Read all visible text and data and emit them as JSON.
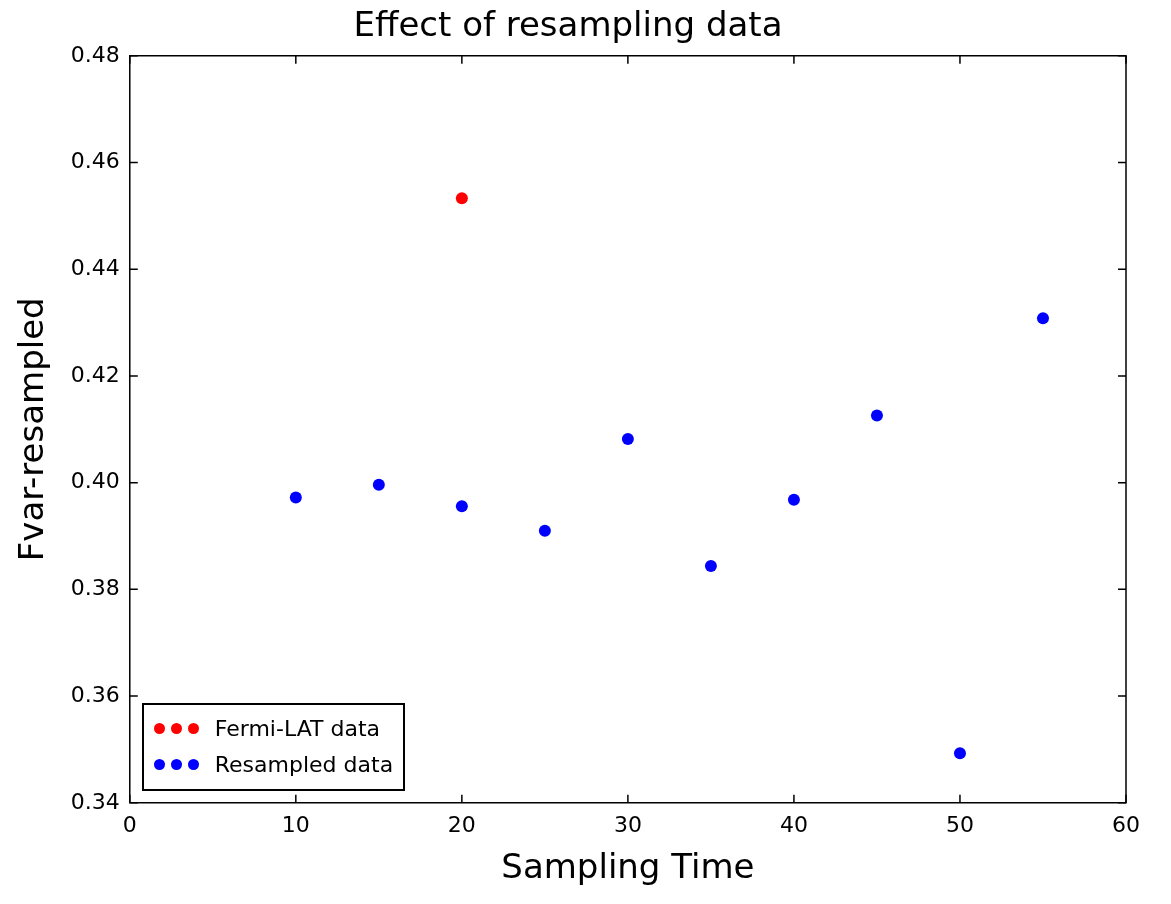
{
  "chart_data": {
    "type": "scatter",
    "title": "Effect of resampling data",
    "xlabel": "Sampling Time",
    "ylabel": "Fvar-resampled",
    "xlim": [
      0,
      60
    ],
    "xticks": [
      0,
      10,
      20,
      30,
      40,
      50,
      60
    ],
    "ylim": [
      0.34,
      0.48
    ],
    "yticks": [
      0.34,
      0.36,
      0.38,
      {
        "value": 0.4,
        "label": "0.40"
      },
      0.42,
      0.44,
      0.46,
      0.48
    ],
    "grid": false,
    "legend": "bottom left",
    "marker": "circle",
    "series": [
      {
        "name": "Fermi-LAT data",
        "color": "#ff0000",
        "x": [
          20
        ],
        "values": [
          0.4533
        ]
      },
      {
        "name": "Resampled data",
        "color": "#0000ff",
        "x": [
          10,
          15,
          20,
          25,
          30,
          35,
          40,
          45,
          50,
          55
        ],
        "values": [
          0.3972,
          0.3996,
          0.3956,
          0.391,
          0.4082,
          0.3844,
          0.3968,
          0.4126,
          0.3493,
          0.4308
        ]
      }
    ]
  }
}
